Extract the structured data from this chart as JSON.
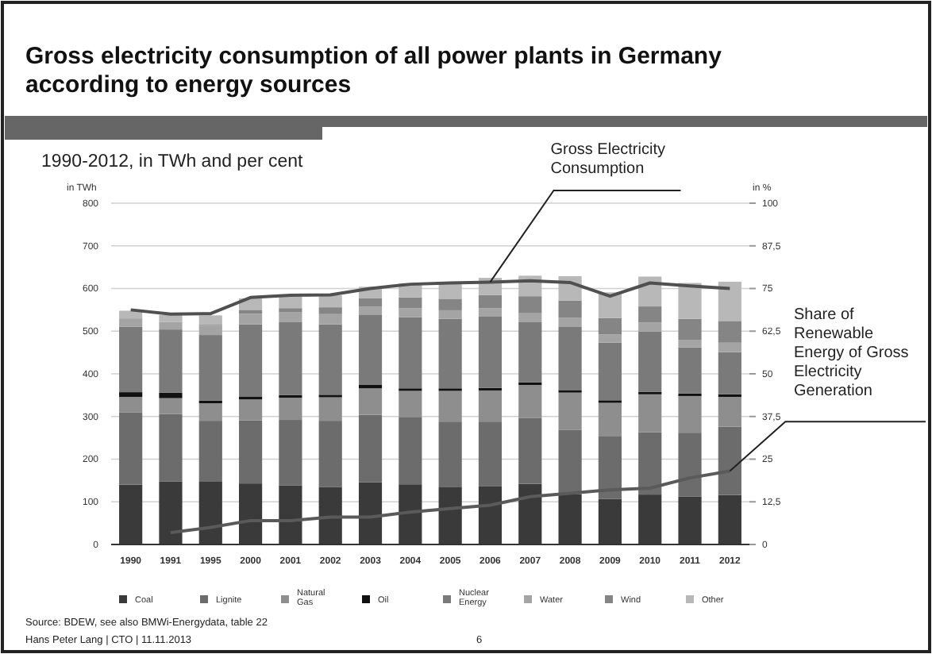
{
  "chart_data": {
    "type": "bar",
    "title": "Gross electricity consumption of all power plants in Germany according to energy sources",
    "subtitle": "1990-2012, in TWh and per cent",
    "ylabel": "in TWh",
    "y2label": "in %",
    "categories": [
      "1990",
      "1991",
      "1995",
      "2000",
      "2001",
      "2002",
      "2003",
      "2004",
      "2005",
      "2006",
      "2007",
      "2008",
      "2009",
      "2010",
      "2011",
      "2012"
    ],
    "stacked": true,
    "grid": "y",
    "legend": "bottom",
    "ylim": [
      0,
      800
    ],
    "yticks": [
      0,
      100,
      200,
      300,
      400,
      500,
      600,
      700,
      800
    ],
    "y2lim": [
      0,
      100
    ],
    "y2ticks": [
      0,
      {
        "value": 12.5,
        "label": "12,5"
      },
      25,
      {
        "value": 37.5,
        "label": "37,5"
      },
      50,
      {
        "value": 62.5,
        "label": "62,5"
      },
      75,
      {
        "value": 87.5,
        "label": "87,5"
      },
      100
    ],
    "series": [
      {
        "name": "Coal",
        "color": "#3a3a3a",
        "values": [
          140,
          148,
          147,
          143,
          138,
          135,
          146,
          141,
          134,
          137,
          142,
          118,
          107,
          117,
          112,
          116
        ]
      },
      {
        "name": "Lignite",
        "color": "#6c6c6c",
        "values": [
          170,
          158,
          143,
          148,
          154,
          155,
          158,
          158,
          154,
          151,
          155,
          151,
          146,
          146,
          150,
          160
        ]
      },
      {
        "name": "Natural Gas",
        "color": "#8e8e8e",
        "values": [
          36,
          37,
          41,
          49,
          52,
          55,
          62,
          61,
          72,
          73,
          77,
          87,
          79,
          89,
          86,
          70
        ]
      },
      {
        "name": "Oil",
        "color": "#111111",
        "values": [
          11,
          13,
          6,
          6,
          6,
          6,
          8,
          6,
          6,
          6,
          6,
          6,
          6,
          6,
          6,
          6
        ]
      },
      {
        "name": "Nuclear Energy",
        "color": "#7a7a7a",
        "values": [
          153,
          148,
          154,
          170,
          171,
          165,
          165,
          167,
          163,
          167,
          141,
          149,
          135,
          141,
          108,
          99
        ]
      },
      {
        "name": "Water",
        "color": "#a4a4a4",
        "values": [
          20,
          18,
          22,
          25,
          23,
          24,
          19,
          21,
          20,
          20,
          21,
          20,
          19,
          21,
          18,
          22
        ]
      },
      {
        "name": "Wind",
        "color": "#858585",
        "values": [
          0,
          0,
          2,
          9,
          10,
          16,
          19,
          25,
          27,
          31,
          40,
          41,
          39,
          38,
          49,
          51
        ]
      },
      {
        "name": "Other",
        "color": "#b8b8b8",
        "values": [
          18,
          16,
          22,
          27,
          27,
          28,
          27,
          32,
          38,
          40,
          48,
          57,
          60,
          70,
          84,
          92
        ]
      },
      {
        "type": "line",
        "color": "#505050",
        "values": [
          550,
          540,
          541,
          579,
          584,
          585,
          600,
          610,
          613,
          615,
          618,
          614,
          582,
          613,
          606,
          600
        ]
      },
      {
        "type": "line",
        "axis": "y2",
        "color": "#5a5a5a",
        "values": [
          null,
          3.5,
          5,
          7,
          7,
          8,
          8,
          9.5,
          10.5,
          11.5,
          14,
          15,
          16,
          16.5,
          19.5,
          21.5
        ]
      }
    ],
    "annotations": [
      {
        "text": "Gross Electricity Consumption",
        "x": "2006",
        "y": 615
      },
      "Share of Renewable Energy of Gross Electricity Generation",
      "Source: BDEW, see also BMWi-Energydata, table 22",
      "Hans Peter Lang | CTO | 11.11.2013",
      "6"
    ]
  }
}
